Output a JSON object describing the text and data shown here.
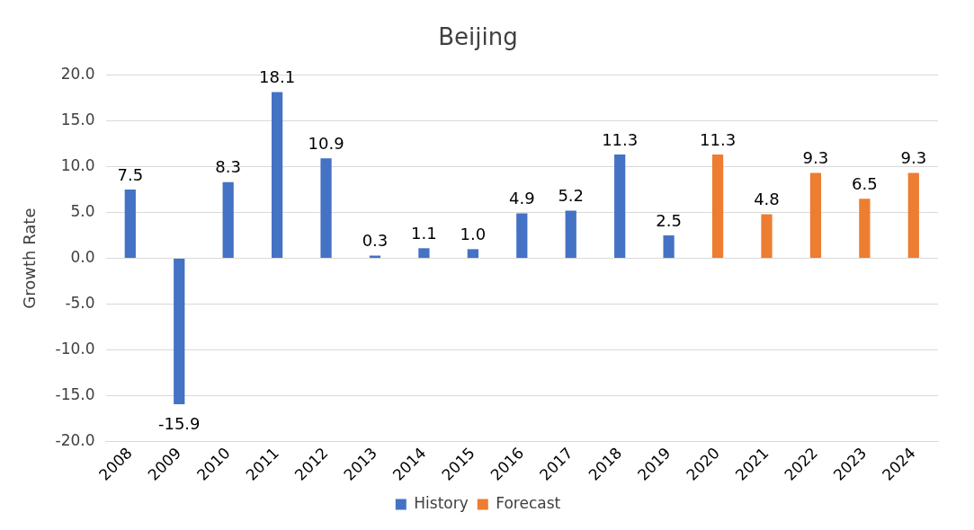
{
  "chart_data": {
    "type": "bar",
    "title": "Beijing",
    "ylabel": "Growth Rate",
    "categories": [
      "2008",
      "2009",
      "2010",
      "2011",
      "2012",
      "2013",
      "2014",
      "2015",
      "2016",
      "2017",
      "2018",
      "2019",
      "2020",
      "2021",
      "2022",
      "2023",
      "2024"
    ],
    "series": [
      {
        "name": "History",
        "color": "#4472c4",
        "values": [
          7.5,
          -15.9,
          8.3,
          18.1,
          10.9,
          0.3,
          1.1,
          1.0,
          4.9,
          5.2,
          11.3,
          2.5,
          null,
          null,
          null,
          null,
          null
        ],
        "value_labels": [
          "7.5",
          "-15.9",
          "8.3",
          "18.1",
          "10.9",
          "0.3",
          "1.1",
          "1.0",
          "4.9",
          "5.2",
          "11.3",
          "2.5",
          null,
          null,
          null,
          null,
          null
        ]
      },
      {
        "name": "Forecast",
        "color": "#ed7d31",
        "values": [
          null,
          null,
          null,
          null,
          null,
          null,
          null,
          null,
          null,
          null,
          null,
          null,
          11.3,
          4.8,
          9.3,
          6.5,
          9.3
        ],
        "value_labels": [
          null,
          null,
          null,
          null,
          null,
          null,
          null,
          null,
          null,
          null,
          null,
          null,
          "11.3",
          "4.8",
          "9.3",
          "6.5",
          "9.3"
        ]
      }
    ],
    "ylim": [
      -20,
      20
    ],
    "yticks": [
      {
        "value": -20,
        "label": "-20.0"
      },
      {
        "value": -15,
        "label": "-15.0"
      },
      {
        "value": -10,
        "label": "-10.0"
      },
      {
        "value": -5,
        "label": "-5.0"
      },
      {
        "value": 0,
        "label": "0.0"
      },
      {
        "value": 5,
        "label": "5.0"
      },
      {
        "value": 10,
        "label": "10.0"
      },
      {
        "value": 15,
        "label": "15.0"
      },
      {
        "value": 20,
        "label": "20.0"
      }
    ],
    "grid": "y",
    "legend": "bottom"
  }
}
